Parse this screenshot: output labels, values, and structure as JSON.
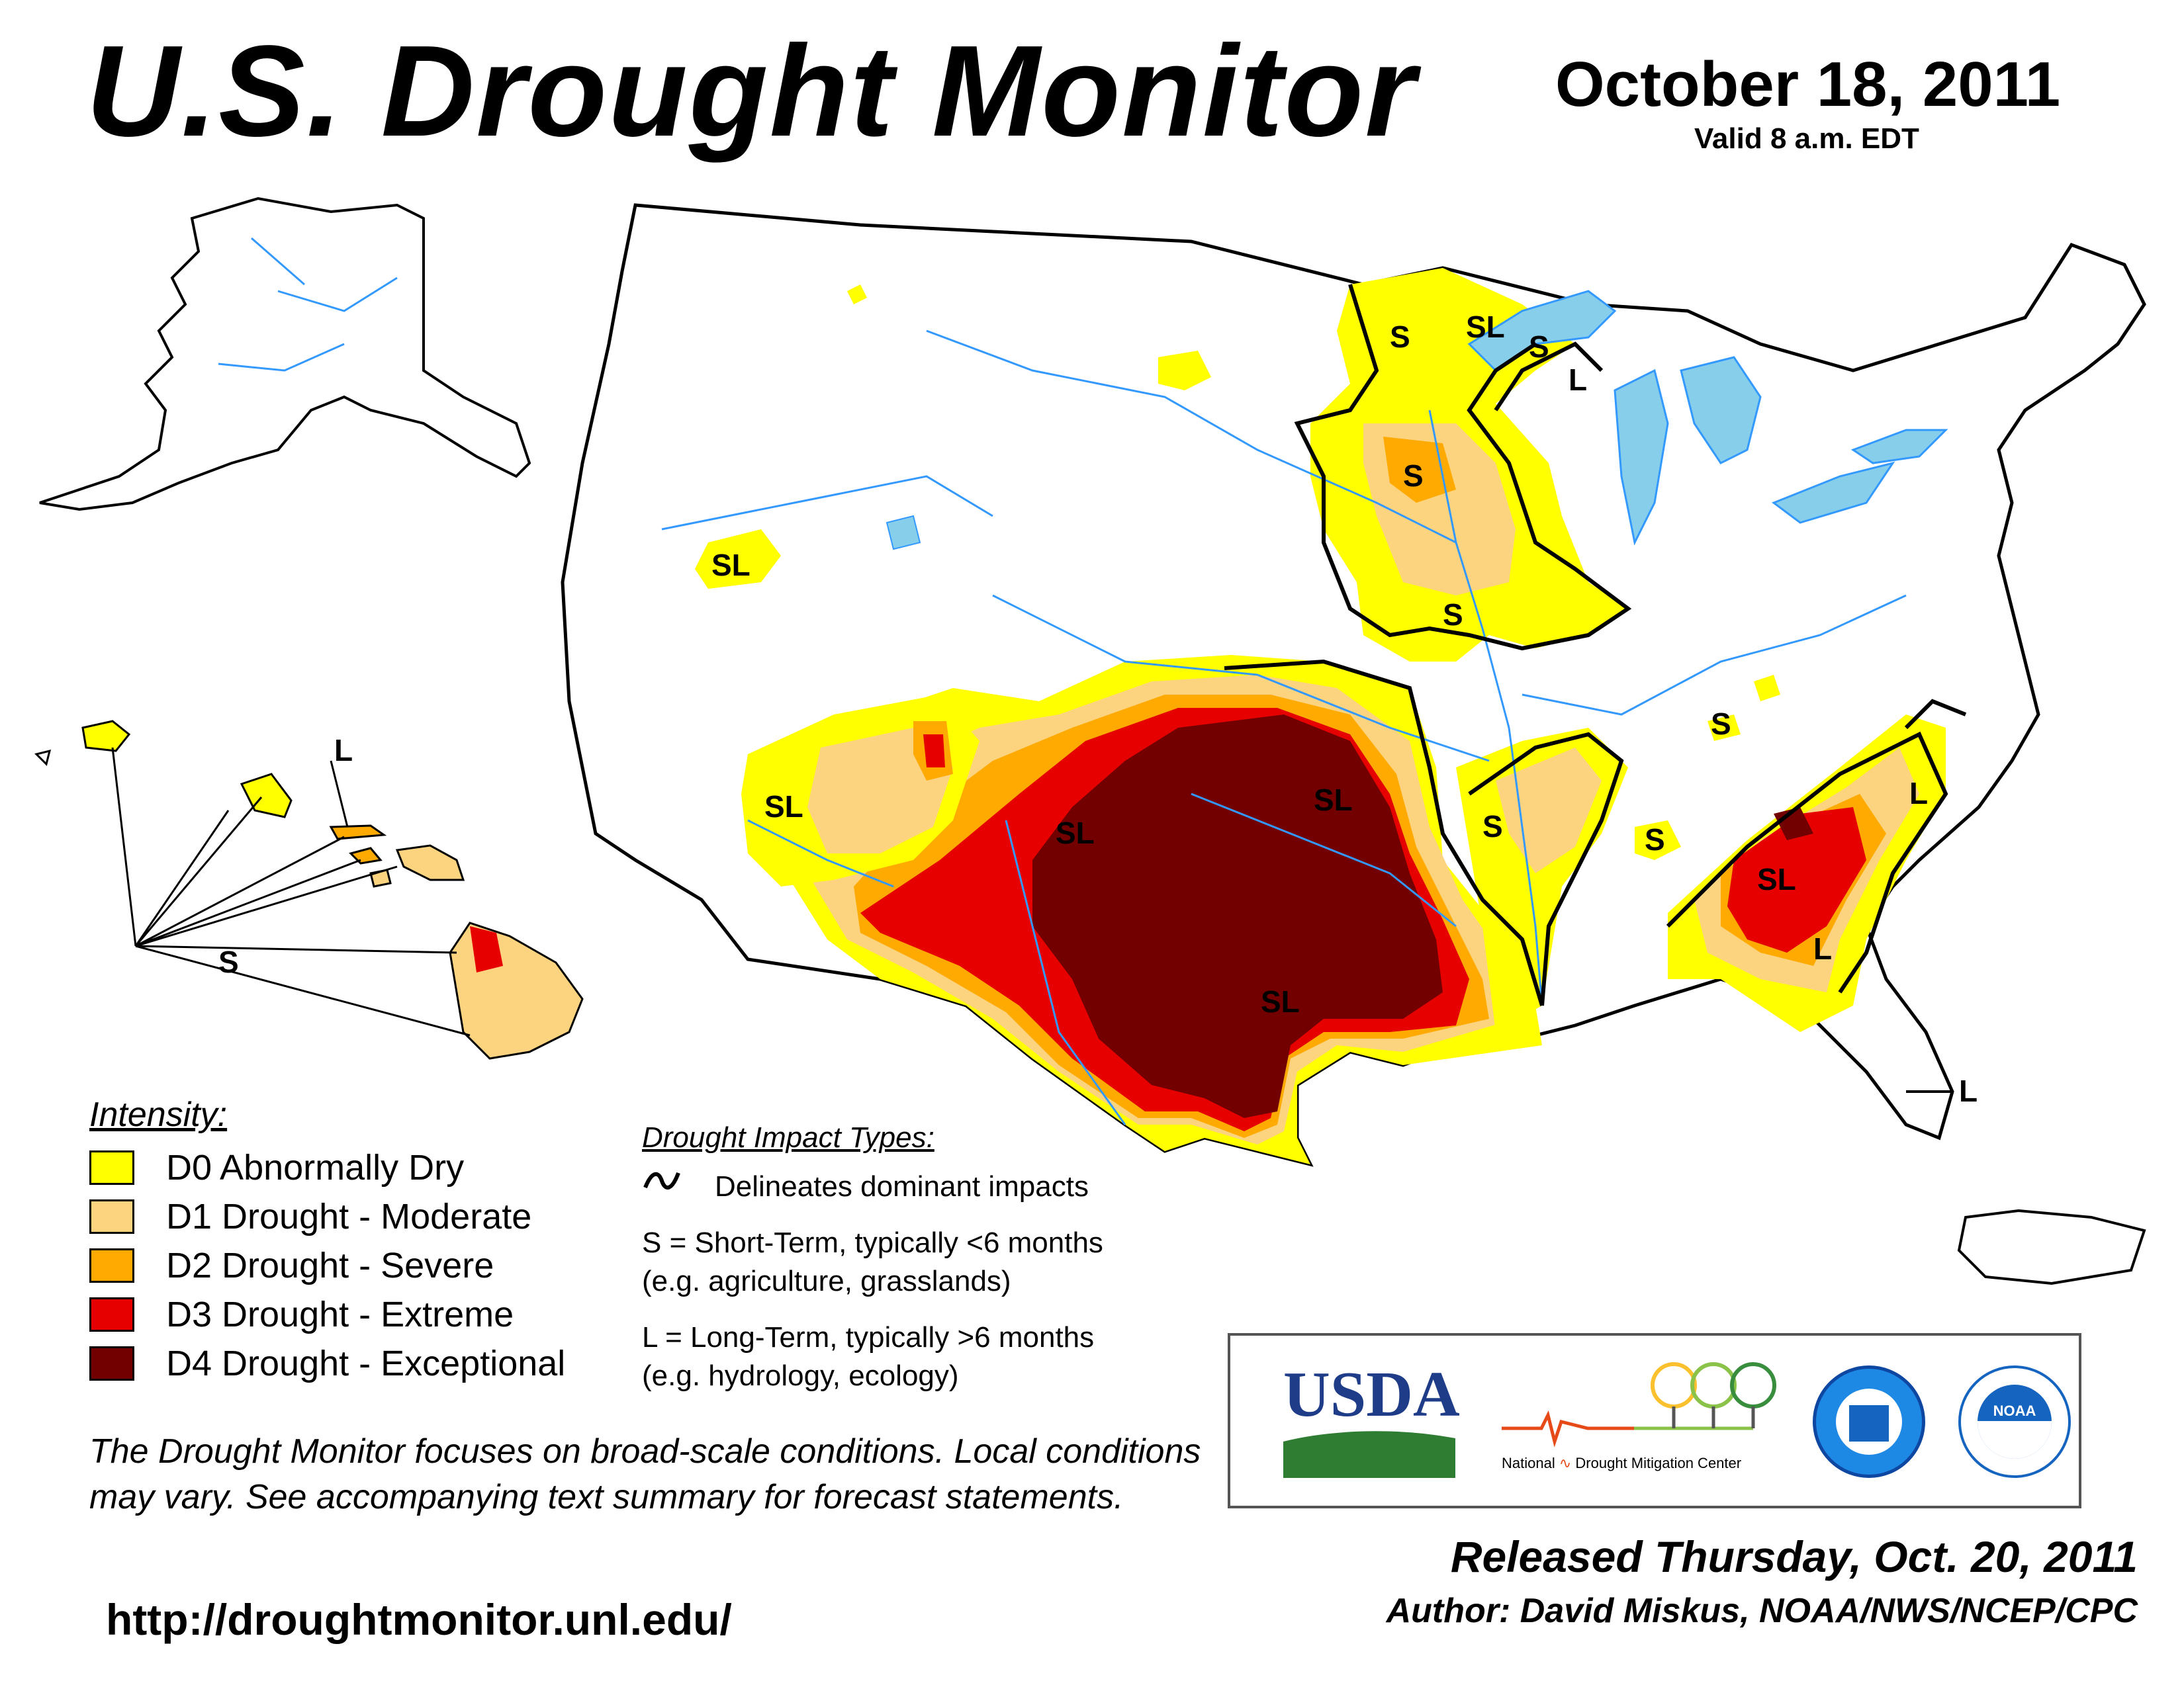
{
  "title": "U.S. Drought Monitor",
  "date": "October 18, 2011",
  "valid_time": "Valid 8 a.m. EDT",
  "legend": {
    "title": "Intensity:",
    "items": [
      {
        "code": "D0",
        "label": "D0 Abnormally Dry",
        "color": "#FFFF00"
      },
      {
        "code": "D1",
        "label": "D1 Drought - Moderate",
        "color": "#FCD37F"
      },
      {
        "code": "D2",
        "label": "D2 Drought - Severe",
        "color": "#FFAA00"
      },
      {
        "code": "D3",
        "label": "D3 Drought - Extreme",
        "color": "#E60000"
      },
      {
        "code": "D4",
        "label": "D4 Drought - Exceptional",
        "color": "#730000"
      }
    ]
  },
  "impact_types": {
    "title": "Drought Impact Types:",
    "delineates": "Delineates dominant impacts",
    "short_term": "S = Short-Term, typically <6 months",
    "short_term_examples": "(e.g. agriculture, grasslands)",
    "long_term": "L = Long-Term, typically >6 months",
    "long_term_examples": "(e.g. hydrology, ecology)"
  },
  "map_labels": {
    "nevada": "SL",
    "arizona": "SL",
    "new_mexico": "SL",
    "oklahoma": "SL",
    "texas": "SL",
    "georgia": "SL",
    "minnesota_north": "S",
    "minnesota_arrowhead": "SL",
    "lake_superior": "S",
    "michigan_up": "L",
    "minnesota_central": "S",
    "iowa": "S",
    "arkansas": "S",
    "tennessee": "S",
    "ohio_valley": "S",
    "virginia": "L",
    "south_carolina": "L",
    "florida": "L",
    "hawaii_s": "S",
    "hawaii_l": "L"
  },
  "disclaimer": "The Drought Monitor focuses on broad-scale conditions. Local conditions may vary. See accompanying text summary for forecast statements.",
  "url": "http://droughtmonitor.unl.edu/",
  "logos": {
    "usda": "USDA",
    "ndmc_prefix": "National",
    "ndmc_rest": "Drought Mitigation Center",
    "noaa": "NOAA"
  },
  "released": "Released Thursday, Oct. 20, 2011",
  "author": "Author: David Miskus, NOAA/NWS/NCEP/CPC",
  "colors": {
    "water": "#87CEEB",
    "river": "#3399FF",
    "state_border": "#000000",
    "county_border": "#999999"
  }
}
